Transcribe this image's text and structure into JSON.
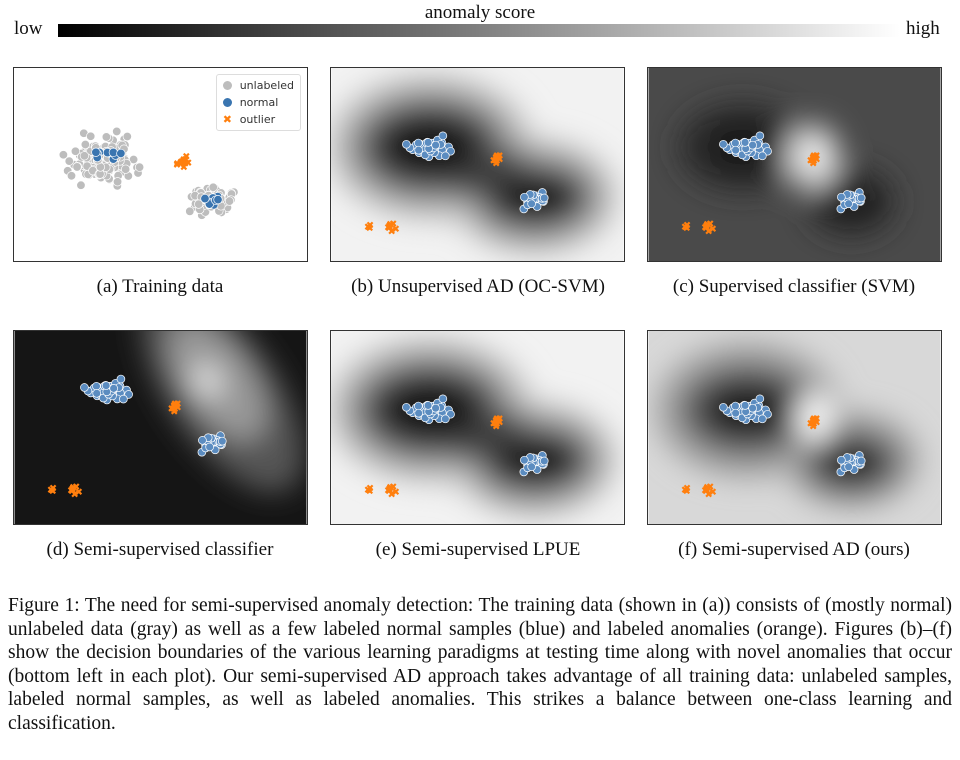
{
  "colorbar": {
    "title": "anomaly score",
    "low": "low",
    "high": "high"
  },
  "legend": {
    "unlabeled": "unlabeled",
    "normal": "normal",
    "outlier": "outlier"
  },
  "colors": {
    "unlabeled": "#bdbdbd",
    "normal": "#3a75b0",
    "outlier": "#ff7f0e"
  },
  "panels": [
    {
      "id": "a",
      "label": "(a)  Training data"
    },
    {
      "id": "b",
      "label": "(b)  Unsupervised AD (OC-SVM)"
    },
    {
      "id": "c",
      "label": "(c)  Supervised classifier (SVM)"
    },
    {
      "id": "d",
      "label": "(d)  Semi-supervised classifier"
    },
    {
      "id": "e",
      "label": "(e)  Semi-supervised LPUE"
    },
    {
      "id": "f",
      "label": "(f)  Semi-supervised AD (ours)"
    }
  ],
  "caption": "Figure 1: The need for semi-supervised anomaly detection: The training data (shown in (a)) consists of (mostly normal) unlabeled data (gray) as well as a few labeled normal samples (blue) and labeled anomalies (orange). Figures (b)–(f) show the decision boundaries of the various learning paradigms at testing time along with novel anomalies that occur (bottom left in each plot). Our semi-supervised AD approach takes advantage of all training data: unlabeled samples, labeled normal samples, as well as labeled anomalies. This strikes a balance between one-class learning and classification."
}
